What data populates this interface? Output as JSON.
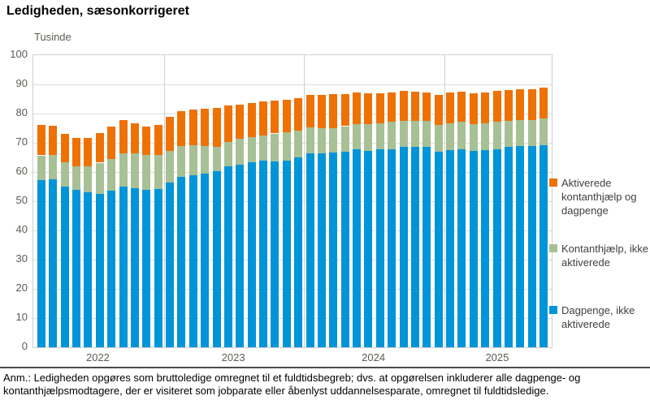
{
  "title": "Ledigheden, sæsonkorrigeret",
  "y_axis": {
    "unit_label": "Tusinde",
    "min": 0,
    "max": 100,
    "step": 10
  },
  "x_axis": {
    "year_labels": [
      "2022",
      "2023",
      "2024",
      "2025"
    ]
  },
  "legend": [
    {
      "label": "Aktiverede kontanthjælp og dagpenge",
      "color": "#ee7103"
    },
    {
      "label": "Kontanthjælp, ikke aktiverede",
      "color": "#a7c096"
    },
    {
      "label": "Dagpenge, ikke aktiverede",
      "color": "#0094d8"
    }
  ],
  "footnote": "Anm.: Ledigheden opgøres som bruttoledige omregnet til et fuldtidsbegreb; dvs. at opgørelsen inkluderer alle dagpenge- og kontanthjælpsmodtagere, der er visiteret som jobparate eller åbenlyst uddannelsesparate, omregnet til fuldtidsledige.",
  "chart_data": {
    "type": "bar",
    "stacked": true,
    "title": "Ledigheden, sæsonkorrigeret",
    "ylabel": "Tusinde",
    "ylim": [
      0,
      100
    ],
    "ytick_step": 10,
    "grid": true,
    "legend_position": "right",
    "x": [
      "2022-02",
      "2022-03",
      "2022-04",
      "2022-05",
      "2022-06",
      "2022-07",
      "2022-08",
      "2022-09",
      "2022-10",
      "2022-11",
      "2022-12",
      "2023-01",
      "2023-02",
      "2023-03",
      "2023-04",
      "2023-05",
      "2023-06",
      "2023-07",
      "2023-08",
      "2023-09",
      "2023-10",
      "2023-11",
      "2023-12",
      "2024-01",
      "2024-02",
      "2024-03",
      "2024-04",
      "2024-05",
      "2024-06",
      "2024-07",
      "2024-08",
      "2024-09",
      "2024-10",
      "2024-11",
      "2024-12",
      "2025-01",
      "2025-02",
      "2025-03",
      "2025-04",
      "2025-05",
      "2025-06",
      "2025-07",
      "2025-08",
      "2025-09"
    ],
    "year_sections": [
      {
        "label": "2022",
        "months": 11
      },
      {
        "label": "2023",
        "months": 12
      },
      {
        "label": "2024",
        "months": 12
      },
      {
        "label": "2025",
        "months": 9
      }
    ],
    "series": [
      {
        "name": "Dagpenge, ikke aktiverede",
        "color": "#0094d8",
        "values": [
          57.3,
          57.5,
          55.1,
          54.0,
          53.0,
          52.4,
          53.6,
          54.9,
          54.4,
          54.0,
          54.2,
          56.3,
          58.4,
          58.9,
          59.4,
          60.3,
          61.9,
          62.6,
          63.2,
          64.0,
          63.7,
          64.0,
          65.0,
          66.5,
          66.3,
          66.8,
          66.9,
          67.7,
          67.2,
          67.7,
          67.9,
          68.6,
          68.6,
          68.5,
          66.9,
          67.5,
          67.7,
          67.2,
          67.5,
          67.9,
          68.6,
          68.8,
          68.9,
          69.1
        ]
      },
      {
        "name": "Kontanthjælp, ikke aktiverede",
        "color": "#a7c096",
        "values": [
          8.4,
          8.2,
          8.3,
          7.9,
          8.9,
          10.8,
          10.9,
          11.6,
          12.1,
          11.8,
          11.7,
          10.9,
          10.6,
          10.3,
          9.4,
          8.3,
          8.4,
          8.8,
          8.7,
          8.5,
          9.5,
          9.6,
          9.2,
          8.8,
          8.8,
          8.3,
          8.8,
          8.8,
          9.1,
          9.1,
          9.2,
          9.0,
          9.0,
          9.0,
          9.1,
          9.2,
          9.4,
          9.3,
          9.3,
          9.2,
          8.8,
          8.9,
          9.0,
          9.2
        ]
      },
      {
        "name": "Aktiverede kontanthjælp og dagpenge",
        "color": "#ee7103",
        "values": [
          10.4,
          10.1,
          9.7,
          9.9,
          9.7,
          10.1,
          11.1,
          11.4,
          10.3,
          9.9,
          10.1,
          11.7,
          11.8,
          12.1,
          12.8,
          13.4,
          12.4,
          11.7,
          11.7,
          11.7,
          11.2,
          11.2,
          11.1,
          11.1,
          11.3,
          11.6,
          11.0,
          10.6,
          10.6,
          10.2,
          10.0,
          10.2,
          10.0,
          9.8,
          10.4,
          10.4,
          10.5,
          10.4,
          10.3,
          10.7,
          10.7,
          10.5,
          10.3,
          10.7
        ]
      }
    ]
  }
}
